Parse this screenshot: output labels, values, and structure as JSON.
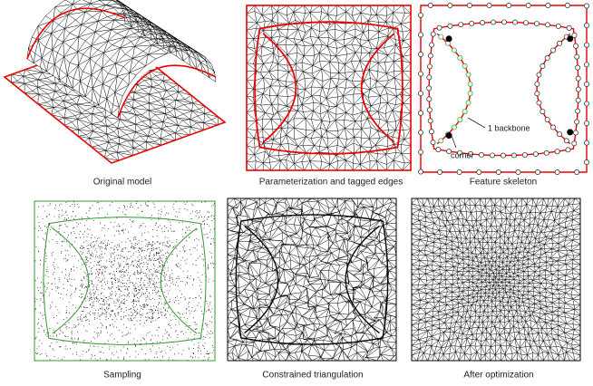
{
  "figure": {
    "panels": [
      {
        "caption": "Original model"
      },
      {
        "caption": "Parameterization and tagged edges"
      },
      {
        "caption": "Feature skeleton",
        "annotations": [
          "1 backbone",
          "corner"
        ]
      },
      {
        "caption": "Sampling"
      },
      {
        "caption": "Constrained triangulation"
      },
      {
        "caption": "After optimization"
      }
    ]
  }
}
